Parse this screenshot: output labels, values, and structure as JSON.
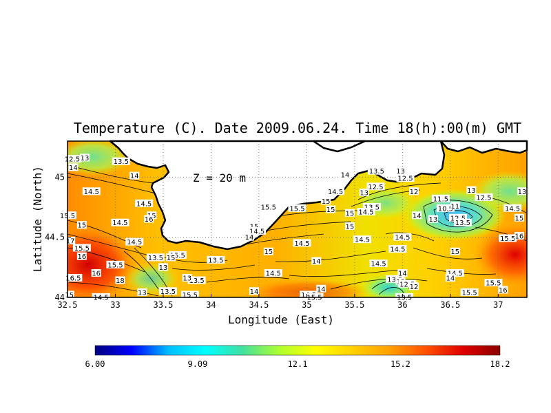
{
  "title": "Temperature (C). Date 2009.06.24. Time 18(h):00(m) GMT",
  "depth_label": "Z = 20 m",
  "axes": {
    "xlabel": "Longitude (East)",
    "ylabel": "Latitude (North)",
    "xlim": [
      32.5,
      37.3
    ],
    "ylim": [
      44.0,
      45.3
    ],
    "xticks": [
      "32.5",
      "33",
      "33.5",
      "34",
      "34.5",
      "35",
      "35.5",
      "36",
      "36.5",
      "37"
    ],
    "yticks": [
      "44",
      "44.5",
      "45"
    ],
    "grid": "dotted"
  },
  "colorbar": {
    "min": 6.0,
    "max": 18.2,
    "tick_labels": [
      "6.00",
      "9.09",
      "12.1",
      "15.2",
      "18.2"
    ],
    "colors": [
      "#000080",
      "#0000ff",
      "#00bfff",
      "#00ffff",
      "#40e0a0",
      "#adff2f",
      "#ffff00",
      "#ffd000",
      "#ffa000",
      "#ff5000",
      "#e00000",
      "#8b0000"
    ]
  },
  "chart_data": {
    "type": "heatmap",
    "title": "Temperature (C). Date 2009.06.24. Time 18(h):00(m) GMT",
    "xlabel": "Longitude (East)",
    "ylabel": "Latitude (North)",
    "xlim": [
      32.5,
      37.3
    ],
    "ylim": [
      44.0,
      45.3
    ],
    "value_range": [
      6.0,
      18.2
    ],
    "contour_labels": [
      {
        "lon": 32.55,
        "lat": 45.15,
        "value": "12.5"
      },
      {
        "lon": 32.68,
        "lat": 45.16,
        "value": "13"
      },
      {
        "lon": 32.56,
        "lat": 45.08,
        "value": "14"
      },
      {
        "lon": 32.75,
        "lat": 44.88,
        "value": "14.5"
      },
      {
        "lon": 33.06,
        "lat": 45.13,
        "value": "13.5"
      },
      {
        "lon": 33.2,
        "lat": 45.01,
        "value": "14"
      },
      {
        "lon": 32.5,
        "lat": 44.68,
        "value": "15.5"
      },
      {
        "lon": 32.65,
        "lat": 44.6,
        "value": "15"
      },
      {
        "lon": 33.05,
        "lat": 44.62,
        "value": "14.5"
      },
      {
        "lon": 33.3,
        "lat": 44.78,
        "value": "14.5"
      },
      {
        "lon": 33.38,
        "lat": 44.68,
        "value": "15"
      },
      {
        "lon": 33.35,
        "lat": 44.65,
        "value": "16"
      },
      {
        "lon": 32.53,
        "lat": 44.47,
        "value": "17"
      },
      {
        "lon": 32.65,
        "lat": 44.41,
        "value": "15.5"
      },
      {
        "lon": 32.65,
        "lat": 44.34,
        "value": "16"
      },
      {
        "lon": 33.2,
        "lat": 44.46,
        "value": "14.5"
      },
      {
        "lon": 33.42,
        "lat": 44.33,
        "value": "13.5"
      },
      {
        "lon": 33.5,
        "lat": 44.25,
        "value": "13"
      },
      {
        "lon": 33.0,
        "lat": 44.27,
        "value": "15.5"
      },
      {
        "lon": 32.8,
        "lat": 44.2,
        "value": "16"
      },
      {
        "lon": 32.56,
        "lat": 44.16,
        "value": "16.5"
      },
      {
        "lon": 33.05,
        "lat": 44.14,
        "value": "18"
      },
      {
        "lon": 32.52,
        "lat": 44.02,
        "value": "15"
      },
      {
        "lon": 32.85,
        "lat": 44.0,
        "value": "14.5"
      },
      {
        "lon": 33.28,
        "lat": 44.04,
        "value": "13"
      },
      {
        "lon": 33.55,
        "lat": 44.05,
        "value": "13.5"
      },
      {
        "lon": 33.78,
        "lat": 44.02,
        "value": "15.5"
      },
      {
        "lon": 33.65,
        "lat": 44.35,
        "value": "15.5"
      },
      {
        "lon": 33.58,
        "lat": 44.33,
        "value": "15"
      },
      {
        "lon": 33.85,
        "lat": 44.14,
        "value": "13.5"
      },
      {
        "lon": 33.75,
        "lat": 44.16,
        "value": "13"
      },
      {
        "lon": 34.05,
        "lat": 44.31,
        "value": "13.5"
      },
      {
        "lon": 34.45,
        "lat": 44.59,
        "value": "15"
      },
      {
        "lon": 34.48,
        "lat": 44.55,
        "value": "14.5"
      },
      {
        "lon": 34.4,
        "lat": 44.5,
        "value": "14"
      },
      {
        "lon": 34.6,
        "lat": 44.75,
        "value": "15.5"
      },
      {
        "lon": 34.6,
        "lat": 44.38,
        "value": "15"
      },
      {
        "lon": 34.65,
        "lat": 44.2,
        "value": "14.5"
      },
      {
        "lon": 34.45,
        "lat": 44.05,
        "value": "14"
      },
      {
        "lon": 34.9,
        "lat": 44.74,
        "value": "15.5"
      },
      {
        "lon": 34.95,
        "lat": 44.45,
        "value": "14.5"
      },
      {
        "lon": 35.1,
        "lat": 44.3,
        "value": "14"
      },
      {
        "lon": 35.15,
        "lat": 44.07,
        "value": "14"
      },
      {
        "lon": 35.02,
        "lat": 44.02,
        "value": "14.5"
      },
      {
        "lon": 35.08,
        "lat": 44.0,
        "value": "15.5"
      },
      {
        "lon": 35.3,
        "lat": 44.88,
        "value": "14.5"
      },
      {
        "lon": 35.4,
        "lat": 45.02,
        "value": "14"
      },
      {
        "lon": 35.2,
        "lat": 44.8,
        "value": "15"
      },
      {
        "lon": 35.25,
        "lat": 44.73,
        "value": "15"
      },
      {
        "lon": 35.45,
        "lat": 44.7,
        "value": "15"
      },
      {
        "lon": 35.45,
        "lat": 44.59,
        "value": "15"
      },
      {
        "lon": 35.6,
        "lat": 44.87,
        "value": "13"
      },
      {
        "lon": 35.73,
        "lat": 45.05,
        "value": "13.5"
      },
      {
        "lon": 35.72,
        "lat": 44.92,
        "value": "12.5"
      },
      {
        "lon": 35.68,
        "lat": 44.75,
        "value": "13.5"
      },
      {
        "lon": 35.62,
        "lat": 44.71,
        "value": "14.5"
      },
      {
        "lon": 35.58,
        "lat": 44.48,
        "value": "14.5"
      },
      {
        "lon": 35.75,
        "lat": 44.28,
        "value": "14.5"
      },
      {
        "lon": 35.98,
        "lat": 45.05,
        "value": "13"
      },
      {
        "lon": 36.03,
        "lat": 44.99,
        "value": "12.5"
      },
      {
        "lon": 36.12,
        "lat": 44.88,
        "value": "12"
      },
      {
        "lon": 36.4,
        "lat": 44.82,
        "value": "11.5"
      },
      {
        "lon": 36.45,
        "lat": 44.74,
        "value": "10.5"
      },
      {
        "lon": 36.55,
        "lat": 44.76,
        "value": "11"
      },
      {
        "lon": 36.72,
        "lat": 44.89,
        "value": "13"
      },
      {
        "lon": 36.85,
        "lat": 44.83,
        "value": "12.5"
      },
      {
        "lon": 36.58,
        "lat": 44.66,
        "value": "12.5"
      },
      {
        "lon": 36.63,
        "lat": 44.62,
        "value": "13.5"
      },
      {
        "lon": 36.15,
        "lat": 44.68,
        "value": "14"
      },
      {
        "lon": 36.32,
        "lat": 44.65,
        "value": "13"
      },
      {
        "lon": 36.0,
        "lat": 44.5,
        "value": "14.5"
      },
      {
        "lon": 37.15,
        "lat": 44.74,
        "value": "14.5"
      },
      {
        "lon": 37.22,
        "lat": 44.66,
        "value": "15"
      },
      {
        "lon": 37.25,
        "lat": 44.88,
        "value": "13"
      },
      {
        "lon": 37.1,
        "lat": 44.49,
        "value": "15.5"
      },
      {
        "lon": 37.22,
        "lat": 44.51,
        "value": "16"
      },
      {
        "lon": 36.55,
        "lat": 44.38,
        "value": "15"
      },
      {
        "lon": 36.55,
        "lat": 44.2,
        "value": "14.5"
      },
      {
        "lon": 36.5,
        "lat": 44.16,
        "value": "14"
      },
      {
        "lon": 36.95,
        "lat": 44.12,
        "value": "15.5"
      },
      {
        "lon": 37.05,
        "lat": 44.06,
        "value": "16"
      },
      {
        "lon": 36.7,
        "lat": 44.04,
        "value": "15.5"
      },
      {
        "lon": 35.92,
        "lat": 44.15,
        "value": "13.5"
      },
      {
        "lon": 35.98,
        "lat": 44.13,
        "value": "13"
      },
      {
        "lon": 36.05,
        "lat": 44.11,
        "value": "12.5"
      },
      {
        "lon": 36.12,
        "lat": 44.09,
        "value": "12"
      },
      {
        "lon": 36.0,
        "lat": 44.2,
        "value": "14"
      },
      {
        "lon": 36.02,
        "lat": 44.0,
        "value": "13.5"
      },
      {
        "lon": 35.95,
        "lat": 44.4,
        "value": "14.5"
      }
    ]
  }
}
